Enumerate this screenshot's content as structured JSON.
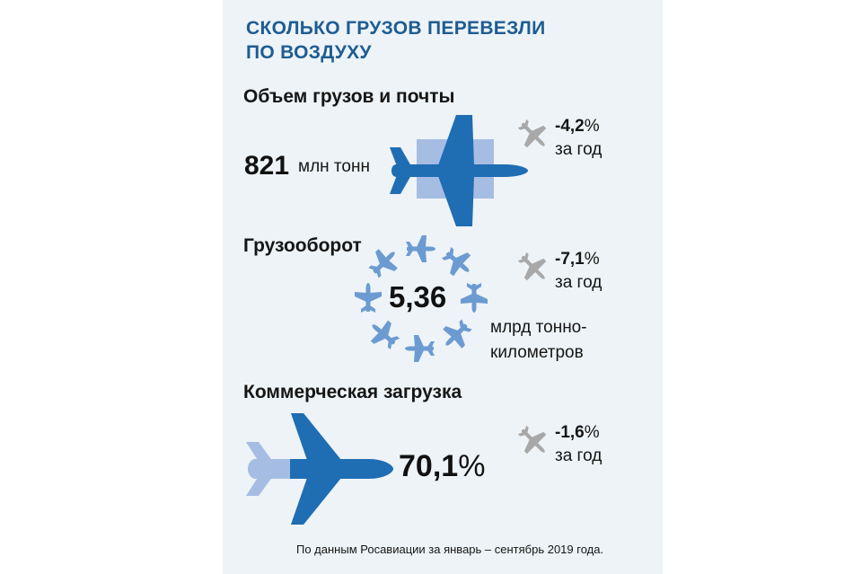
{
  "title": [
    "СКОЛЬКО ГРУЗОВ ПЕРЕВЕЗЛИ",
    "ПО ВОЗДУХУ"
  ],
  "colors": {
    "accent": "#1e5c92",
    "plane_dark": "#1f6db3",
    "plane_light": "#6b9bd1",
    "box": "#a6bde3",
    "trend_icon": "#a8a8a8",
    "panel": "#edf3f7"
  },
  "sections": [
    {
      "heading": "Объем грузов и почты",
      "value": "821",
      "unit": "млн тонн",
      "change": "-4,2",
      "change_sym": "%",
      "change_label": "за год",
      "icon": "airplane-icon"
    },
    {
      "heading": "Грузооборот",
      "value": "5,36",
      "unit_lines": [
        "млрд тонно-",
        "километров"
      ],
      "change": "-7,1",
      "change_sym": "%",
      "change_label": "за год",
      "icon": "airplane-ring-icon"
    },
    {
      "heading": "Коммерческая загрузка",
      "value": "70,1",
      "value_sym": "%",
      "load_factor_percent": 70.1,
      "change": "-1,6",
      "change_sym": "%",
      "change_label": "за год",
      "icon": "airplane-icon"
    }
  ],
  "trend_icon": "descending-airplane-icon",
  "footnote": "По данным Росавиации за январь – сентябрь 2019 года."
}
